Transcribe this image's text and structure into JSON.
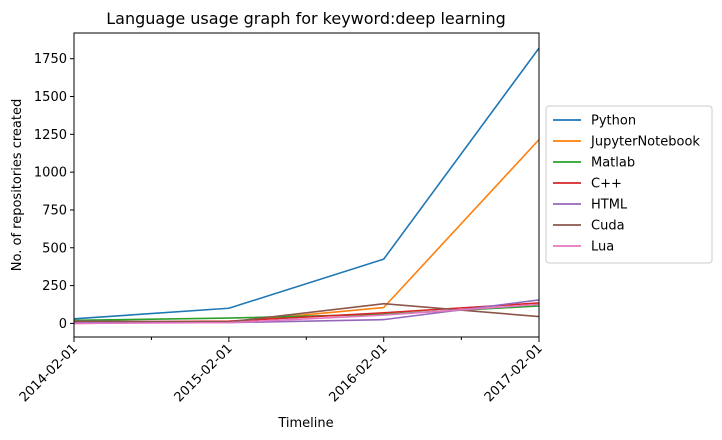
{
  "chart_data": {
    "type": "line",
    "title": "Language usage graph for keyword:deep learning",
    "xlabel": "Timeline",
    "ylabel": "No. of repositories created",
    "x": [
      "2014-02-01",
      "2015-02-01",
      "2016-02-01",
      "2017-02-01"
    ],
    "xlim": [
      "2014-02-01",
      "2017-02-01"
    ],
    "ylim": [
      -90,
      1920
    ],
    "yticks": [
      0,
      250,
      500,
      750,
      1000,
      1250,
      1500,
      1750
    ],
    "grid": false,
    "legend_placement": "center-right-outside",
    "series": [
      {
        "name": "Python",
        "color": "#1f77b4",
        "values": [
          30,
          100,
          425,
          1820
        ]
      },
      {
        "name": "JupyterNotebook",
        "color": "#ff7f0e",
        "values": [
          0,
          10,
          105,
          1215
        ]
      },
      {
        "name": "Matlab",
        "color": "#2ca02c",
        "values": [
          20,
          35,
          60,
          115
        ]
      },
      {
        "name": "C++",
        "color": "#d62728",
        "values": [
          10,
          15,
          70,
          135
        ]
      },
      {
        "name": "HTML",
        "color": "#9467bd",
        "values": [
          5,
          5,
          25,
          155
        ]
      },
      {
        "name": "Cuda",
        "color": "#8c564b",
        "values": [
          15,
          10,
          130,
          45
        ]
      },
      {
        "name": "Lua",
        "color": "#e377c2",
        "values": [
          0,
          5,
          55,
          125
        ]
      }
    ]
  }
}
